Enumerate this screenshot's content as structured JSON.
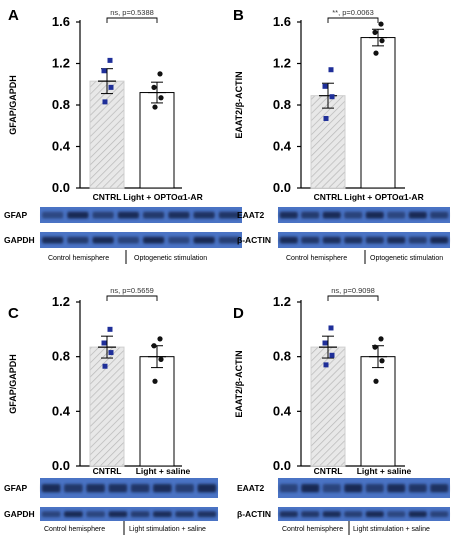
{
  "chart_data": [
    {
      "panel": "A",
      "type": "bar",
      "ylabel": "GFAP/GAPDH",
      "ylim": [
        0,
        1.6
      ],
      "yticks": [
        "0.0",
        "0.4",
        "0.8",
        "1.2",
        "1.6"
      ],
      "categories": [
        "CNTRL",
        "Light + OPTOα1-AR"
      ],
      "values": [
        1.03,
        0.92
      ],
      "sem": [
        0.12,
        0.1
      ],
      "points": [
        [
          1.23,
          1.13,
          0.97,
          0.83
        ],
        [
          1.1,
          0.97,
          0.87,
          0.78
        ]
      ],
      "significance": "ns, p=0.5388",
      "blots": [
        {
          "label": "GFAP"
        },
        {
          "label": "GAPDH"
        }
      ],
      "caption_left": "Control hemisphere",
      "caption_right": "Optogenetic stimulation"
    },
    {
      "panel": "B",
      "type": "bar",
      "ylabel": "EAAT2/β-ACTIN",
      "ylim": [
        0,
        1.6
      ],
      "yticks": [
        "0.0",
        "0.4",
        "0.8",
        "1.2",
        "1.6"
      ],
      "categories": [
        "CNTRL",
        "Light + OPTOα1-AR"
      ],
      "values": [
        0.89,
        1.45
      ],
      "sem": [
        0.12,
        0.08
      ],
      "points": [
        [
          1.14,
          0.98,
          0.88,
          0.67
        ],
        [
          1.58,
          1.5,
          1.42,
          1.3
        ]
      ],
      "significance": "**, p=0.0063",
      "blots": [
        {
          "label": "EAAT2"
        },
        {
          "label": "β-ACTIN"
        }
      ],
      "caption_left": "Control hemisphere",
      "caption_right": "Optogenetic stimulation"
    },
    {
      "panel": "C",
      "type": "bar",
      "ylabel": "GFAP/GAPDH",
      "ylim": [
        0,
        1.2
      ],
      "yticks": [
        "0.0",
        "0.4",
        "0.8",
        "1.2"
      ],
      "categories": [
        "CNTRL",
        "Light + saline"
      ],
      "values": [
        0.87,
        0.8
      ],
      "sem": [
        0.08,
        0.08
      ],
      "points": [
        [
          1.0,
          0.9,
          0.83,
          0.73
        ],
        [
          0.93,
          0.88,
          0.78,
          0.62
        ]
      ],
      "significance": "ns, p=0.5659",
      "blots": [
        {
          "label": "GFAP"
        },
        {
          "label": "GAPDH"
        }
      ],
      "caption_left": "Control hemisphere",
      "caption_right": "Light stimulation + saline"
    },
    {
      "panel": "D",
      "type": "bar",
      "ylabel": "EAAT2/β-ACTIN",
      "ylim": [
        0,
        1.2
      ],
      "yticks": [
        "0.0",
        "0.4",
        "0.8",
        "1.2"
      ],
      "categories": [
        "CNTRL",
        "Light + saline"
      ],
      "values": [
        0.87,
        0.8
      ],
      "sem": [
        0.08,
        0.08
      ],
      "points": [
        [
          1.01,
          0.9,
          0.81,
          0.74
        ],
        [
          0.93,
          0.87,
          0.77,
          0.62
        ]
      ],
      "significance": "ns, p=0.9098",
      "blots": [
        {
          "label": "EAAT2"
        },
        {
          "label": "β-ACTIN"
        }
      ],
      "caption_left": "Control hemisphere",
      "caption_right": "Light stimulation + saline"
    }
  ],
  "colors": {
    "control_bar_fill": "#e8e8e8",
    "hatch": "#b8b8b8",
    "control_points": "#1f2f99",
    "treated_points": "#111111",
    "blot_background": "#4a73c4",
    "blot_band": "#15254f"
  }
}
